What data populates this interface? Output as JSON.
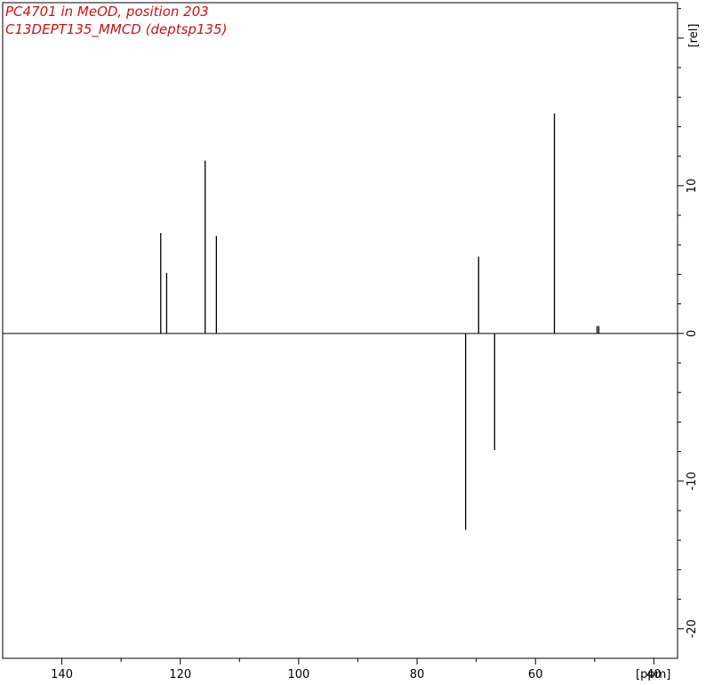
{
  "title_lines": [
    "PC4701 in MeOD, position 203",
    "C13DEPT135_MMCD (deptsp135)"
  ],
  "colors": {
    "title": "#cc1111",
    "spectrum": "#000000",
    "axis": "#000000"
  },
  "chart_data": {
    "type": "line",
    "title": "PC4701 in MeOD, position 203",
    "subtitle": "C13DEPT135_MMCD (deptsp135)",
    "xlabel": "[ppm]",
    "ylabel": "[rel]",
    "xlim": [
      150,
      36
    ],
    "ylim": [
      -22,
      22.4
    ],
    "x_axis_reversed": true,
    "x_ticks": [
      140,
      120,
      100,
      80,
      60,
      40
    ],
    "x_tick_labels": [
      "140",
      "120",
      "100",
      "80",
      "60",
      "40"
    ],
    "y_ticks": [
      20,
      10,
      0,
      -10,
      -20
    ],
    "y_tick_labels": [
      "",
      "10",
      "0",
      "-10",
      "-20"
    ],
    "grid": false,
    "series": [
      {
        "peaks": [
          {
            "ppm": 123.3,
            "intensity": 6.8
          },
          {
            "ppm": 122.3,
            "intensity": 4.1
          },
          {
            "ppm": 115.8,
            "intensity": 11.7
          },
          {
            "ppm": 113.9,
            "intensity": 6.6
          },
          {
            "ppm": 71.8,
            "intensity": -13.3
          },
          {
            "ppm": 69.6,
            "intensity": 5.2
          },
          {
            "ppm": 66.9,
            "intensity": -7.9
          },
          {
            "ppm": 56.8,
            "intensity": 14.9
          },
          {
            "ppm": 49.6,
            "intensity": 0.5
          },
          {
            "ppm": 49.3,
            "intensity": 0.5
          }
        ]
      }
    ]
  }
}
